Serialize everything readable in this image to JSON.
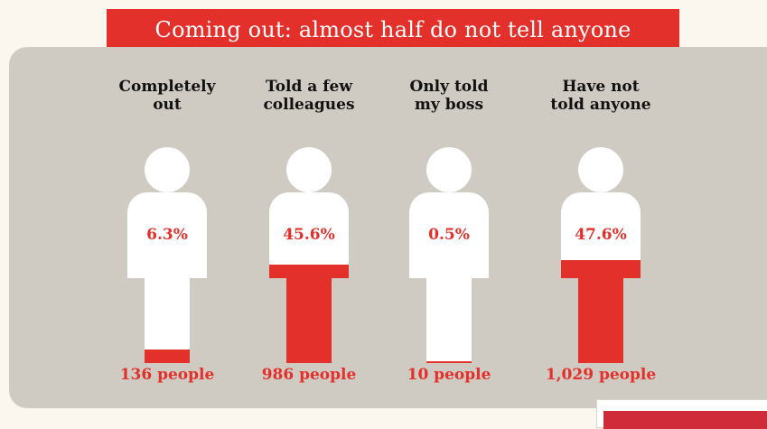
{
  "title": "Coming out: almost half do not tell anyone",
  "colors": {
    "accent": "#e3302b",
    "panel": "#cfcbc3",
    "figure": "#ffffff"
  },
  "figures": [
    {
      "heading": "Completely\nout",
      "percent": "6.3%",
      "count": "136 people",
      "share": 0.063
    },
    {
      "heading": "Told a few\ncolleagues",
      "percent": "45.6%",
      "count": "986 people",
      "share": 0.456
    },
    {
      "heading": "Only told\nmy boss",
      "percent": "0.5%",
      "count": "10 people",
      "share": 0.005
    },
    {
      "heading": "Have not\ntold anyone",
      "percent": "47.6%",
      "count": "1,029 people",
      "share": 0.476
    }
  ]
}
